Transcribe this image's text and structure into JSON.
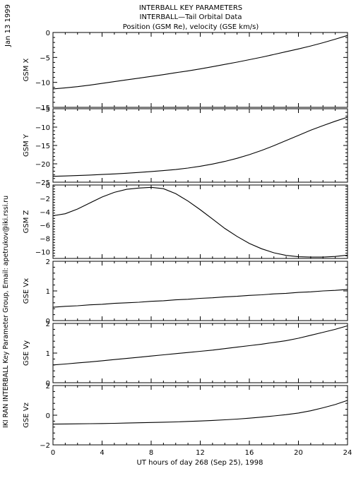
{
  "header": {
    "title_lines": [
      "INTERBALL KEY PARAMETERS",
      "INTERBALL—Tail Orbital Data",
      "Position (GSM Re), velocity (GSE km/s)"
    ]
  },
  "side_date": "Jan 13 1999",
  "side_credit": "IKI RAN INTERBALL Key Parameter Group, Email: apetrukov@iki.rssi.ru",
  "colors": {
    "line": "#000000",
    "background": "#ffffff"
  },
  "chart_data": {
    "type": "line",
    "xlabel": "UT hours of day 268 (Sep 25), 1998",
    "x_ticks": [
      0,
      4,
      8,
      12,
      16,
      20,
      24
    ],
    "xlim": [
      0,
      24
    ],
    "x": [
      0,
      1,
      2,
      3,
      4,
      5,
      6,
      7,
      8,
      9,
      10,
      11,
      12,
      13,
      14,
      15,
      16,
      17,
      18,
      19,
      20,
      21,
      22,
      23,
      24
    ],
    "panels": [
      {
        "ylabel": "GSM X",
        "ylim": [
          -15,
          0
        ],
        "yticks": [
          0,
          -5,
          -10,
          -15
        ],
        "y": [
          -11.3,
          -11.1,
          -10.85,
          -10.55,
          -10.2,
          -9.85,
          -9.5,
          -9.15,
          -8.8,
          -8.45,
          -8.05,
          -7.7,
          -7.3,
          -6.85,
          -6.4,
          -5.95,
          -5.45,
          -4.95,
          -4.4,
          -3.85,
          -3.3,
          -2.7,
          -2.05,
          -1.35,
          -0.6
        ]
      },
      {
        "ylabel": "GSM Y",
        "ylim": [
          -25,
          -5
        ],
        "yticks": [
          -5,
          -10,
          -15,
          -20,
          -25
        ],
        "y": [
          -23.4,
          -23.3,
          -23.2,
          -23.05,
          -22.9,
          -22.75,
          -22.55,
          -22.35,
          -22.1,
          -21.85,
          -21.55,
          -21.15,
          -20.65,
          -20.05,
          -19.35,
          -18.5,
          -17.5,
          -16.35,
          -15.05,
          -13.65,
          -12.25,
          -10.85,
          -9.6,
          -8.4,
          -7.3
        ]
      },
      {
        "ylabel": "GSM Z",
        "ylim": [
          -11,
          0
        ],
        "yticks": [
          0,
          -2,
          -4,
          -6,
          -8,
          -10
        ],
        "y": [
          -4.6,
          -4.3,
          -3.6,
          -2.7,
          -1.8,
          -1.1,
          -0.65,
          -0.45,
          -0.35,
          -0.55,
          -1.3,
          -2.4,
          -3.7,
          -5.1,
          -6.5,
          -7.7,
          -8.75,
          -9.55,
          -10.15,
          -10.55,
          -10.75,
          -10.8,
          -10.8,
          -10.7,
          -10.5
        ]
      },
      {
        "ylabel": "GSE Vx",
        "ylim": [
          0,
          2
        ],
        "yticks": [
          0,
          1,
          2
        ],
        "y": [
          0.45,
          0.48,
          0.5,
          0.53,
          0.55,
          0.58,
          0.6,
          0.62,
          0.65,
          0.67,
          0.7,
          0.72,
          0.75,
          0.77,
          0.8,
          0.82,
          0.85,
          0.87,
          0.9,
          0.92,
          0.95,
          0.97,
          1.0,
          1.02,
          1.05
        ]
      },
      {
        "ylabel": "GSE Vy",
        "ylim": [
          0,
          2
        ],
        "yticks": [
          0,
          1,
          2
        ],
        "y": [
          0.6,
          0.63,
          0.67,
          0.7,
          0.74,
          0.78,
          0.82,
          0.86,
          0.9,
          0.94,
          0.98,
          1.02,
          1.06,
          1.1,
          1.15,
          1.2,
          1.25,
          1.3,
          1.36,
          1.42,
          1.5,
          1.6,
          1.7,
          1.8,
          1.92
        ]
      },
      {
        "ylabel": "GSE Vz",
        "ylim": [
          -2,
          2
        ],
        "yticks": [
          -2,
          0,
          2
        ],
        "y": [
          -0.6,
          -0.59,
          -0.58,
          -0.57,
          -0.56,
          -0.55,
          -0.53,
          -0.51,
          -0.49,
          -0.47,
          -0.45,
          -0.42,
          -0.39,
          -0.35,
          -0.31,
          -0.26,
          -0.2,
          -0.13,
          -0.05,
          0.04,
          0.15,
          0.3,
          0.5,
          0.72,
          1.0
        ]
      }
    ]
  }
}
